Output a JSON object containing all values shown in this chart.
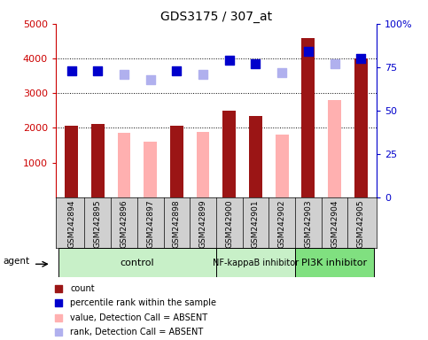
{
  "title": "GDS3175 / 307_at",
  "samples": [
    "GSM242894",
    "GSM242895",
    "GSM242896",
    "GSM242897",
    "GSM242898",
    "GSM242899",
    "GSM242900",
    "GSM242901",
    "GSM242902",
    "GSM242903",
    "GSM242904",
    "GSM242905"
  ],
  "count_present": [
    2050,
    2100,
    null,
    null,
    2050,
    null,
    2500,
    2350,
    null,
    4600,
    null,
    4000
  ],
  "count_absent": [
    null,
    null,
    1850,
    1600,
    null,
    1880,
    null,
    null,
    1800,
    null,
    2800,
    null
  ],
  "rank_present": [
    73,
    73,
    null,
    null,
    73,
    null,
    79,
    77,
    null,
    84,
    null,
    80
  ],
  "rank_absent": [
    null,
    null,
    71,
    68,
    null,
    71,
    null,
    null,
    72,
    null,
    77,
    null
  ],
  "groups": [
    {
      "label": "control",
      "start": 0,
      "end": 6,
      "color": "#c8f0c8",
      "fontsize": 8
    },
    {
      "label": "NF-kappaB inhibitor",
      "start": 6,
      "end": 9,
      "color": "#c8f0c8",
      "fontsize": 7
    },
    {
      "label": "PI3K inhibitor",
      "start": 9,
      "end": 12,
      "color": "#80e080",
      "fontsize": 8
    }
  ],
  "ylim_left": [
    0,
    5000
  ],
  "ylim_right": [
    0,
    100
  ],
  "yticks_left": [
    1000,
    2000,
    3000,
    4000,
    5000
  ],
  "yticks_right": [
    0,
    25,
    50,
    75,
    100
  ],
  "color_count_present": "#9b1515",
  "color_count_absent": "#ffb0b0",
  "color_rank_present": "#0000cc",
  "color_rank_absent": "#b0b0ee",
  "left_axis_color": "#cc0000",
  "right_axis_color": "#0000cc",
  "bg_color": "#ffffff",
  "legend_items": [
    {
      "color": "#9b1515",
      "label": "count"
    },
    {
      "color": "#0000cc",
      "label": "percentile rank within the sample"
    },
    {
      "color": "#ffb0b0",
      "label": "value, Detection Call = ABSENT"
    },
    {
      "color": "#b0b0ee",
      "label": "rank, Detection Call = ABSENT"
    }
  ]
}
